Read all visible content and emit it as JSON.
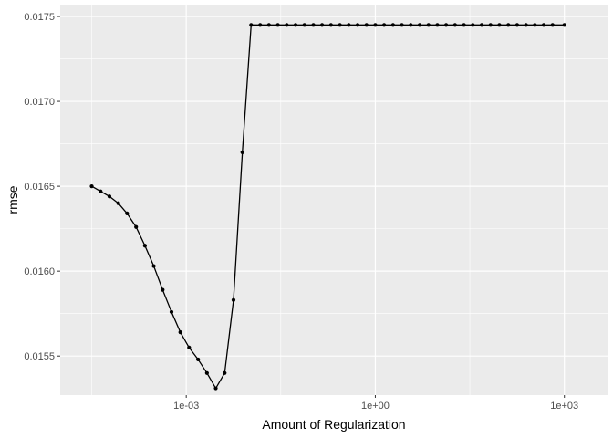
{
  "chart_data": {
    "type": "line",
    "xlabel": "Amount of Regularization",
    "ylabel": "rmse",
    "x_scale": "log10",
    "xlim": [
      1e-05,
      5000
    ],
    "ylim": [
      0.01527,
      0.01757
    ],
    "x_ticks": [
      {
        "value": 0.001,
        "label": "1e-03"
      },
      {
        "value": 1,
        "label": "1e+00"
      },
      {
        "value": 1000,
        "label": "1e+03"
      }
    ],
    "y_ticks": [
      {
        "value": 0.0155,
        "label": "0.0155"
      },
      {
        "value": 0.016,
        "label": "0.0160"
      },
      {
        "value": 0.0165,
        "label": "0.0165"
      },
      {
        "value": 0.017,
        "label": "0.0170"
      },
      {
        "value": 0.0175,
        "label": "0.0175"
      }
    ],
    "grid": true,
    "series": [
      {
        "x": [
          3.16e-05,
          4.37e-05,
          6.04e-05,
          8.35e-05,
          0.000115,
          0.00016,
          0.000221,
          0.000305,
          0.000422,
          0.000583,
          0.000806,
          0.00111,
          0.00154,
          0.00213,
          0.00294,
          0.00407,
          0.00562,
          0.00777,
          0.0107,
          0.0149,
          0.0205,
          0.0284,
          0.0393,
          0.0543,
          0.075,
          0.104,
          0.143,
          0.198,
          0.274,
          0.379,
          0.524,
          0.724,
          1.0,
          1.38,
          1.91,
          2.64,
          3.65,
          5.05,
          6.98,
          9.65,
          13.3,
          18.4,
          25.5,
          35.2,
          48.7,
          67.3,
          93.0,
          129,
          178,
          246,
          340,
          470,
          649,
          1000
        ],
        "values": [
          0.0165,
          0.01647,
          0.01644,
          0.0164,
          0.01634,
          0.01626,
          0.01615,
          0.01603,
          0.01589,
          0.01576,
          0.01564,
          0.01555,
          0.01548,
          0.0154,
          0.01531,
          0.0154,
          0.01583,
          0.0167,
          0.01745,
          0.01745,
          0.01745,
          0.01745,
          0.01745,
          0.01745,
          0.01745,
          0.01745,
          0.01745,
          0.01745,
          0.01745,
          0.01745,
          0.01745,
          0.01745,
          0.01745,
          0.01745,
          0.01745,
          0.01745,
          0.01745,
          0.01745,
          0.01745,
          0.01745,
          0.01745,
          0.01745,
          0.01745,
          0.01745,
          0.01745,
          0.01745,
          0.01745,
          0.01745,
          0.01745,
          0.01745,
          0.01745,
          0.01745,
          0.01745,
          0.01745
        ],
        "color": "#000000"
      }
    ],
    "panel_background": "#ebebeb",
    "grid_color": "#ffffff"
  }
}
